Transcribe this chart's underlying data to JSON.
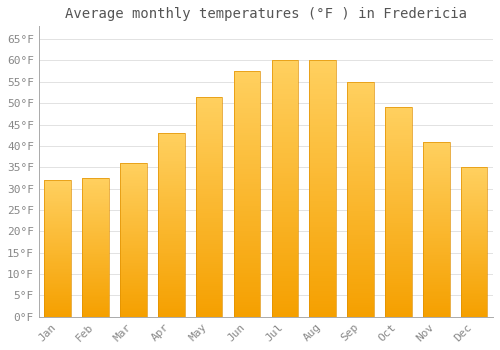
{
  "title": "Average monthly temperatures (°F ) in Fredericia",
  "months": [
    "Jan",
    "Feb",
    "Mar",
    "Apr",
    "May",
    "Jun",
    "Jul",
    "Aug",
    "Sep",
    "Oct",
    "Nov",
    "Dec"
  ],
  "values": [
    32,
    32.5,
    36,
    43,
    51.5,
    57.5,
    60,
    60,
    55,
    49,
    41,
    35
  ],
  "bar_color": "#FFC84B",
  "bar_color_bottom": "#F5A000",
  "background_color": "#FFFFFF",
  "ylim": [
    0,
    68
  ],
  "yticks": [
    0,
    5,
    10,
    15,
    20,
    25,
    30,
    35,
    40,
    45,
    50,
    55,
    60,
    65
  ],
  "ytick_labels": [
    "0°F",
    "5°F",
    "10°F",
    "15°F",
    "20°F",
    "25°F",
    "30°F",
    "35°F",
    "40°F",
    "45°F",
    "50°F",
    "55°F",
    "60°F",
    "65°F"
  ],
  "font_family": "monospace",
  "title_fontsize": 10,
  "tick_fontsize": 8,
  "grid_color": "#DDDDDD",
  "bar_edge_color": "#E09000",
  "tick_color": "#888888"
}
